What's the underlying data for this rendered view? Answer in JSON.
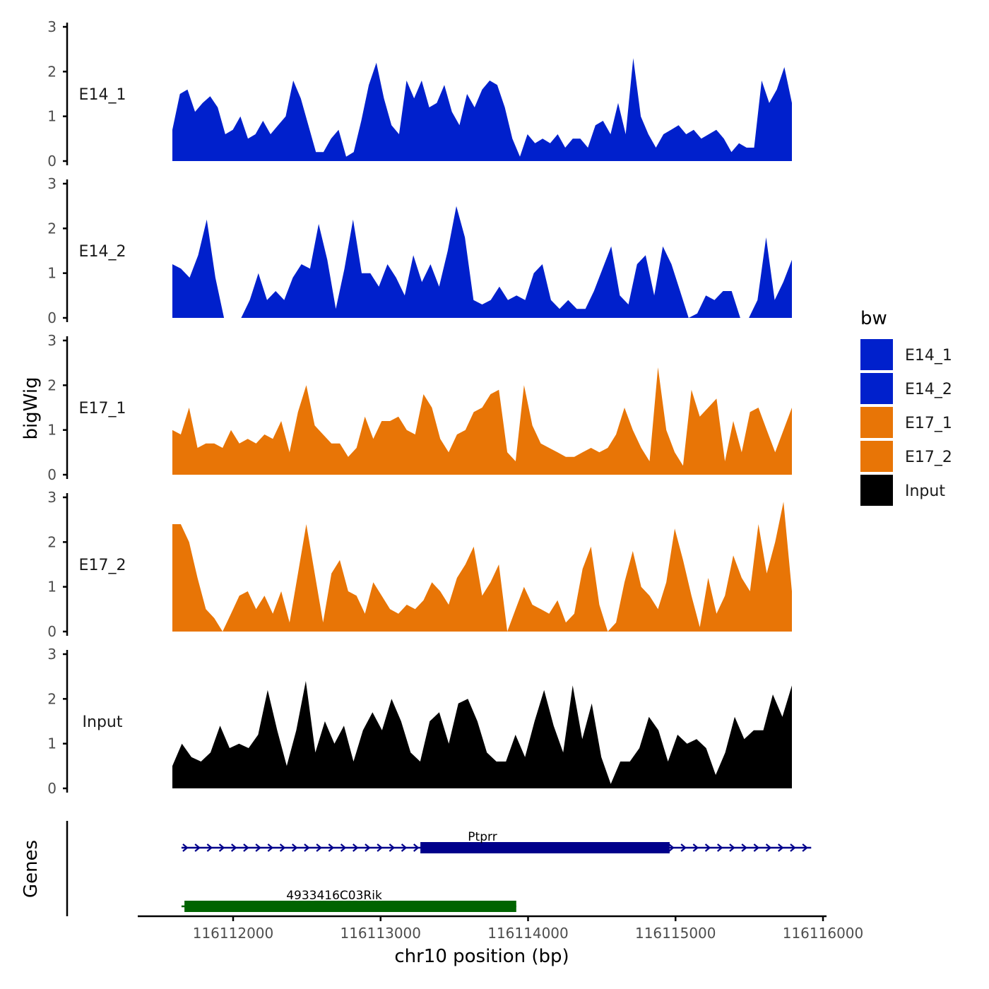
{
  "chart_data": {
    "type": "area",
    "x_axis": {
      "label": "chr10 position (bp)",
      "range": [
        116111400,
        116116000
      ],
      "ticks": [
        116112000,
        116113000,
        116114000,
        116115000,
        116116000
      ],
      "tick_labels": [
        "116112000",
        "116113000",
        "116114000",
        "116115000",
        "116116000"
      ]
    },
    "y_axis": {
      "label": "bigWig",
      "range": [
        0,
        3
      ],
      "ticks": [
        0,
        1,
        2,
        3
      ],
      "tick_labels": [
        "0",
        "1",
        "2",
        "3"
      ]
    },
    "legend": {
      "title": "bw",
      "position": "right",
      "entries": [
        {
          "name": "E14_1",
          "color": "#0020CC"
        },
        {
          "name": "E14_2",
          "color": "#0020CC"
        },
        {
          "name": "E17_1",
          "color": "#E87506"
        },
        {
          "name": "E17_2",
          "color": "#E87506"
        },
        {
          "name": "Input",
          "color": "#000000"
        }
      ]
    },
    "x_start": 116111680,
    "x_step": 60,
    "series": [
      {
        "name": "E14_1",
        "color": "#0020CC",
        "values": [
          0.7,
          1.5,
          1.6,
          1.1,
          1.3,
          1.45,
          1.2,
          0.6,
          0.7,
          1.0,
          0.5,
          0.6,
          0.9,
          0.6,
          0.8,
          1.0,
          1.8,
          1.4,
          0.8,
          0.2,
          0.2,
          0.5,
          0.7,
          0.1,
          0.2,
          0.9,
          1.7,
          2.2,
          1.4,
          0.8,
          0.6,
          1.8,
          1.4,
          1.8,
          1.2,
          1.3,
          1.7,
          1.1,
          0.8,
          1.5,
          1.2,
          1.6,
          1.8,
          1.7,
          1.2,
          0.5,
          0.1,
          0.6,
          0.4,
          0.5,
          0.4,
          0.6,
          0.3,
          0.5,
          0.5,
          0.3,
          0.8,
          0.9,
          0.6,
          1.3,
          0.6,
          2.3,
          1.0,
          0.6,
          0.3,
          0.6,
          0.7,
          0.8,
          0.6,
          0.7,
          0.5,
          0.6,
          0.7,
          0.5,
          0.2,
          0.4,
          0.3,
          0.3,
          1.8,
          1.3,
          1.6,
          2.1,
          1.3
        ]
      },
      {
        "name": "E14_2",
        "color": "#0020CC",
        "values": [
          1.2,
          1.1,
          0.9,
          1.4,
          2.2,
          0.9,
          0,
          0,
          0,
          0.4,
          1.0,
          0.4,
          0.6,
          0.4,
          0.9,
          1.2,
          1.1,
          2.1,
          1.3,
          0.2,
          1.1,
          2.2,
          1.0,
          1.0,
          0.7,
          1.2,
          0.9,
          0.5,
          1.4,
          0.8,
          1.2,
          0.7,
          1.5,
          2.5,
          1.8,
          0.4,
          0.3,
          0.4,
          0.7,
          0.4,
          0.5,
          0.4,
          1.0,
          1.2,
          0.4,
          0.2,
          0.4,
          0.2,
          0.2,
          0.6,
          1.1,
          1.6,
          0.5,
          0.3,
          1.2,
          1.4,
          0.5,
          1.6,
          1.2,
          0.6,
          0,
          0.1,
          0.5,
          0.4,
          0.6,
          0.6,
          0,
          0,
          0.4,
          1.8,
          0.4,
          0.8,
          1.3
        ]
      },
      {
        "name": "E17_1",
        "color": "#E87506",
        "values": [
          1.0,
          0.9,
          1.5,
          0.6,
          0.7,
          0.7,
          0.6,
          1.0,
          0.7,
          0.8,
          0.7,
          0.9,
          0.8,
          1.2,
          0.5,
          1.4,
          2.0,
          1.1,
          0.9,
          0.7,
          0.7,
          0.4,
          0.6,
          1.3,
          0.8,
          1.2,
          1.2,
          1.3,
          1.0,
          0.9,
          1.8,
          1.5,
          0.8,
          0.5,
          0.9,
          1.0,
          1.4,
          1.5,
          1.8,
          1.9,
          0.5,
          0.3,
          2.0,
          1.1,
          0.7,
          0.6,
          0.5,
          0.4,
          0.4,
          0.5,
          0.6,
          0.5,
          0.6,
          0.9,
          1.5,
          1.0,
          0.6,
          0.3,
          2.4,
          1.0,
          0.5,
          0.2,
          1.9,
          1.3,
          1.5,
          1.7,
          0.3,
          1.2,
          0.5,
          1.4,
          1.5,
          1.0,
          0.5,
          1.0,
          1.5
        ]
      },
      {
        "name": "E17_2",
        "color": "#E87506",
        "values": [
          2.4,
          2.4,
          2.0,
          1.2,
          0.5,
          0.3,
          0,
          0.4,
          0.8,
          0.9,
          0.5,
          0.8,
          0.4,
          0.9,
          0.2,
          1.3,
          2.4,
          1.3,
          0.2,
          1.3,
          1.6,
          0.9,
          0.8,
          0.4,
          1.1,
          0.8,
          0.5,
          0.4,
          0.6,
          0.5,
          0.7,
          1.1,
          0.9,
          0.6,
          1.2,
          1.5,
          1.9,
          0.8,
          1.1,
          1.5,
          0,
          0.5,
          1.0,
          0.6,
          0.5,
          0.4,
          0.7,
          0.2,
          0.4,
          1.4,
          1.9,
          0.6,
          0,
          0.2,
          1.1,
          1.8,
          1.0,
          0.8,
          0.5,
          1.1,
          2.3,
          1.6,
          0.8,
          0.1,
          1.2,
          0.4,
          0.8,
          1.7,
          1.2,
          0.9,
          2.4,
          1.3,
          2.0,
          2.9,
          0.9
        ]
      },
      {
        "name": "Input",
        "color": "#000000",
        "values": [
          0.5,
          1.0,
          0.7,
          0.6,
          0.8,
          1.4,
          0.9,
          1.0,
          0.9,
          1.2,
          2.2,
          1.3,
          0.5,
          1.3,
          2.4,
          0.8,
          1.5,
          1.0,
          1.4,
          0.6,
          1.3,
          1.7,
          1.3,
          2.0,
          1.5,
          0.8,
          0.6,
          1.5,
          1.7,
          1.0,
          1.9,
          2.0,
          1.5,
          0.8,
          0.6,
          0.6,
          1.2,
          0.7,
          1.5,
          2.2,
          1.4,
          0.8,
          2.3,
          1.1,
          1.9,
          0.7,
          0.1,
          0.6,
          0.6,
          0.9,
          1.6,
          1.3,
          0.6,
          1.2,
          1.0,
          1.1,
          0.9,
          0.3,
          0.8,
          1.6,
          1.1,
          1.3,
          1.3,
          2.1,
          1.6,
          2.3
        ]
      }
    ],
    "genes_track": {
      "label": "Genes",
      "genes": [
        {
          "name": "Ptprr",
          "strand": "+",
          "intron_start": 116111650,
          "intron_end": 116115920,
          "exon_start": 116113270,
          "exon_end": 116114960,
          "color": "#00008B"
        },
        {
          "name": "4933416C03Rik",
          "strand": "-",
          "intron_start": 116111650,
          "intron_end": 116113920,
          "exon_start": 116111670,
          "exon_end": 116113920,
          "color": "#006400"
        }
      ]
    }
  }
}
